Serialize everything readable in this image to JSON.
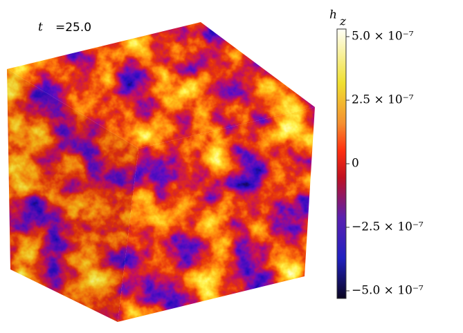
{
  "time_symbol": "t",
  "time_value": "=25.0",
  "colorbar": {
    "label": "h",
    "label_subscript": "z",
    "range": [
      -5.3e-07,
      5.3e-07
    ],
    "ticks": [
      {
        "value": 5e-07,
        "label": "5.0 × 10⁻⁷"
      },
      {
        "value": 2.5e-07,
        "label": "2.5 × 10⁻⁷"
      },
      {
        "value": 0,
        "label": "0"
      },
      {
        "value": -2.5e-07,
        "label": "−2.5 × 10⁻⁷"
      },
      {
        "value": -5e-07,
        "label": "−5.0 × 10⁻⁷"
      }
    ]
  }
}
